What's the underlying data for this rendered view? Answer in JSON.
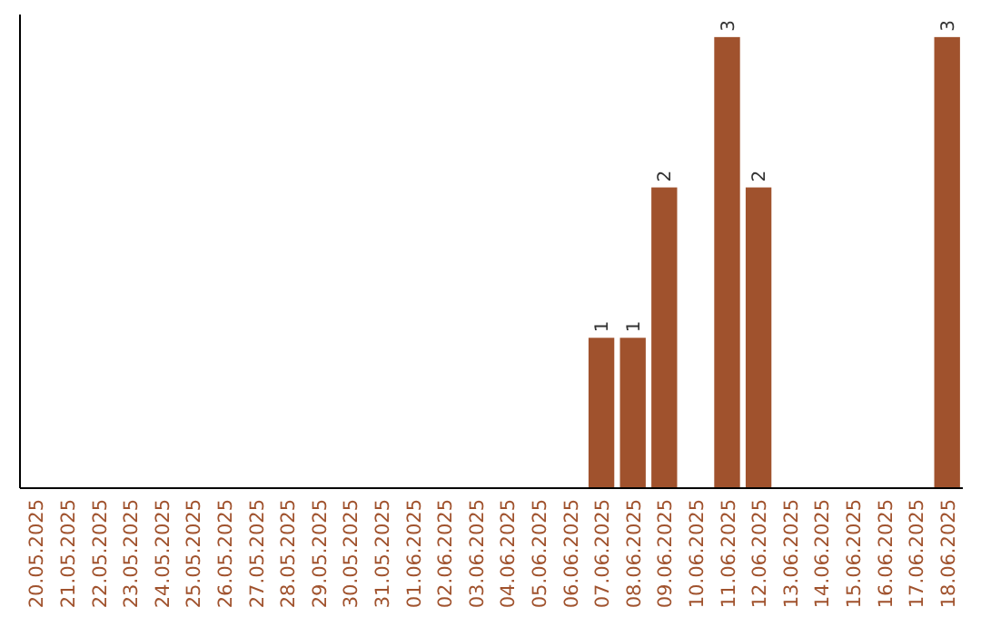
{
  "chart_data": {
    "type": "bar",
    "categories": [
      "20.05.2025",
      "21.05.2025",
      "22.05.2025",
      "23.05.2025",
      "24.05.2025",
      "25.05.2025",
      "26.05.2025",
      "27.05.2025",
      "28.05.2025",
      "29.05.2025",
      "30.05.2025",
      "31.05.2025",
      "01.06.2025",
      "02.06.2025",
      "03.06.2025",
      "04.06.2025",
      "05.06.2025",
      "06.06.2025",
      "07.06.2025",
      "08.06.2025",
      "09.06.2025",
      "10.06.2025",
      "11.06.2025",
      "12.06.2025",
      "13.06.2025",
      "14.06.2025",
      "15.06.2025",
      "16.06.2025",
      "17.06.2025",
      "18.06.2025"
    ],
    "values": [
      null,
      null,
      null,
      null,
      null,
      null,
      null,
      null,
      null,
      null,
      null,
      null,
      null,
      null,
      null,
      null,
      null,
      null,
      1,
      1,
      2,
      null,
      3,
      2,
      null,
      null,
      null,
      null,
      null,
      3
    ],
    "data_labels": true,
    "color": "#a0522d",
    "ylim": [
      0,
      3.15
    ],
    "tick_labels": "x"
  }
}
